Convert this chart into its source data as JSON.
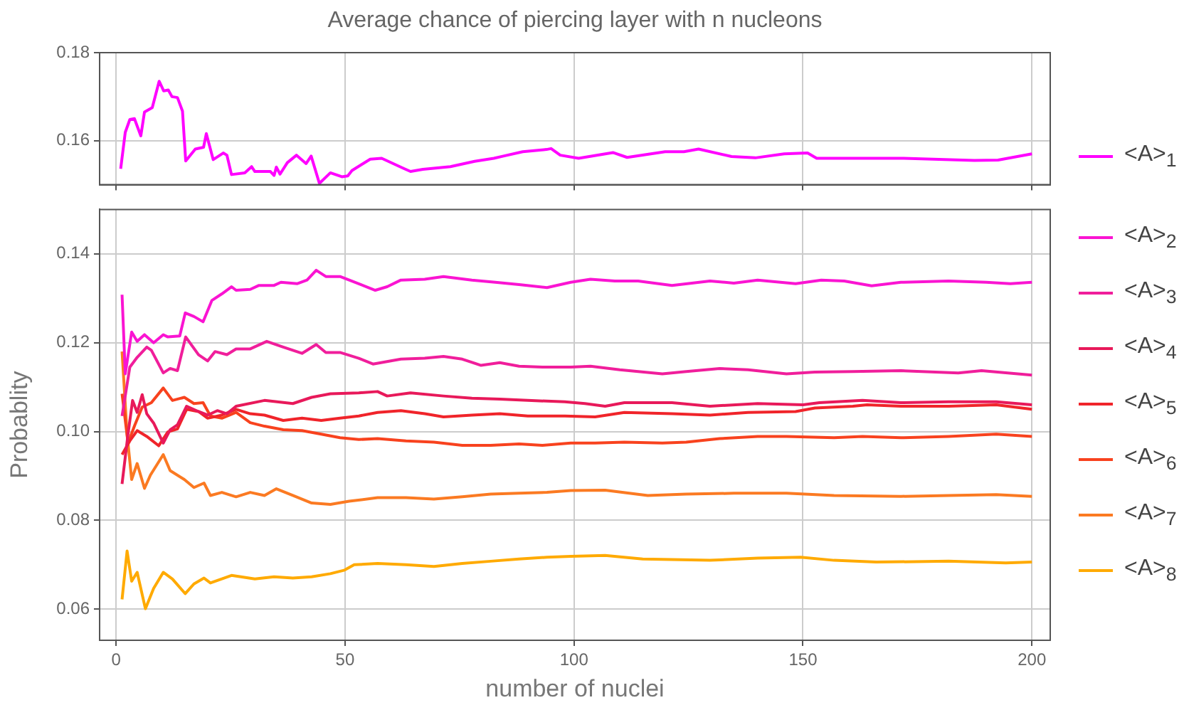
{
  "chart_data": [
    {
      "type": "line",
      "title": "Average chance of piercing layer with n nucleons",
      "xlim": [
        -3.6,
        204
      ],
      "xticks": [
        0,
        50,
        100,
        150,
        200
      ],
      "ylim": [
        0.15,
        0.18
      ],
      "yticks": [
        0.16,
        0.18
      ],
      "grid": true,
      "legend": "bottom right",
      "tick_labels": "y",
      "series": [
        {
          "name": "<A>$_{1}$",
          "color": "#ff00ff",
          "x": [
            1,
            2,
            3,
            4,
            5.4,
            6.2,
            7.9,
            9.4,
            10.4,
            11.4,
            12.2,
            13.4,
            14.5,
            15.2,
            17.3,
            19.1,
            19.7,
            21.2,
            23.4,
            24.2,
            25.2,
            28.1,
            29.6,
            30.3,
            33.7,
            34.5,
            35,
            35.8,
            37.4,
            39.4,
            41.5,
            42.6,
            44.4,
            46.8,
            49.3,
            50.6,
            51.5,
            55.5,
            58,
            62.8,
            64.3,
            67,
            73,
            78.3,
            82.5,
            84.6,
            88.8,
            94,
            95,
            97,
            101,
            108.5,
            111.6,
            119.9,
            124,
            127.2,
            134.4,
            139.6,
            145.9,
            151,
            153,
            171.8,
            187.4,
            192.6,
            200
          ],
          "values": [
            0.1536,
            0.1619,
            0.1648,
            0.165,
            0.1611,
            0.1665,
            0.1675,
            0.1735,
            0.1713,
            0.1715,
            0.17,
            0.1698,
            0.1667,
            0.1554,
            0.1581,
            0.1585,
            0.1616,
            0.1557,
            0.1572,
            0.1567,
            0.1523,
            0.1527,
            0.1541,
            0.153,
            0.153,
            0.1521,
            0.154,
            0.1524,
            0.155,
            0.1567,
            0.1548,
            0.1565,
            0.1503,
            0.1527,
            0.1518,
            0.152,
            0.1532,
            0.1558,
            0.156,
            0.1537,
            0.153,
            0.1535,
            0.1541,
            0.1553,
            0.156,
            0.1565,
            0.1575,
            0.158,
            0.1582,
            0.1567,
            0.156,
            0.1573,
            0.1562,
            0.1575,
            0.1575,
            0.1581,
            0.1564,
            0.1561,
            0.157,
            0.1572,
            0.156,
            0.156,
            0.1555,
            0.1556,
            0.157
          ]
        }
      ]
    },
    {
      "type": "line",
      "xlabel": "number of nuclei",
      "ylabel": "Probablity",
      "xlim": [
        -3.6,
        204
      ],
      "xticks": [
        0,
        50,
        100,
        150,
        200
      ],
      "ylim": [
        0.053,
        0.15
      ],
      "yticks": [
        0.06,
        0.08,
        {
          "value": 0.1,
          "label": "0.10"
        },
        0.12,
        0.14
      ],
      "grid": true,
      "legend": "top right",
      "series": [
        {
          "name": "<A>$_{2}$",
          "color": "#fa14d2",
          "x": [
            1.3,
            2,
            3.4,
            4.6,
            6.2,
            8.2,
            10.3,
            11.3,
            13.9,
            15.1,
            17,
            19,
            20.9,
            23.1,
            25.2,
            26.2,
            29.3,
            31.2,
            34.5,
            36,
            39.6,
            41.7,
            43.7,
            45.8,
            48.9,
            50.9,
            56.6,
            59.2,
            62.2,
            67.4,
            71.5,
            77.7,
            82.8,
            88,
            94.1,
            99.3,
            103.6,
            108.9,
            114,
            121.4,
            129.7,
            134.9,
            140.1,
            148.4,
            154,
            159,
            165,
            171.4,
            181.8,
            190,
            195.3,
            200
          ],
          "values": [
            0.1308,
            0.113,
            0.1224,
            0.1203,
            0.1218,
            0.12,
            0.1218,
            0.1213,
            0.1215,
            0.1267,
            0.1259,
            0.1247,
            0.1295,
            0.131,
            0.1326,
            0.1318,
            0.132,
            0.1329,
            0.1329,
            0.1336,
            0.1333,
            0.1341,
            0.1363,
            0.1349,
            0.1349,
            0.1341,
            0.1318,
            0.1326,
            0.1341,
            0.1343,
            0.1349,
            0.1341,
            0.1336,
            0.1331,
            0.1324,
            0.1336,
            0.1343,
            0.1339,
            0.1339,
            0.1329,
            0.1339,
            0.1334,
            0.1341,
            0.1333,
            0.1341,
            0.1339,
            0.1328,
            0.1336,
            0.1339,
            0.1336,
            0.1333,
            0.1336
          ]
        },
        {
          "name": "<A>$_{3}$",
          "color": "#f01e9b",
          "x": [
            1.3,
            3,
            4.6,
            6.7,
            7.7,
            10.3,
            11.8,
            13.4,
            15.2,
            18,
            20,
            21.6,
            24.2,
            26.2,
            29.3,
            32.9,
            36.5,
            40.6,
            43.7,
            45.8,
            48.9,
            53,
            56.1,
            62.2,
            67.4,
            71.5,
            75.6,
            79.7,
            83.8,
            88,
            93.1,
            99.3,
            103.6,
            110,
            119.3,
            124.5,
            131.8,
            138,
            146.4,
            152.6,
            160.9,
            171.4,
            183.9,
            189,
            200
          ],
          "values": [
            0.1035,
            0.1145,
            0.1167,
            0.119,
            0.1183,
            0.1132,
            0.1142,
            0.1137,
            0.1213,
            0.1173,
            0.1159,
            0.118,
            0.1173,
            0.1186,
            0.1186,
            0.1203,
            0.119,
            0.1176,
            0.1196,
            0.1178,
            0.1178,
            0.1165,
            0.1152,
            0.1163,
            0.1165,
            0.1169,
            0.1163,
            0.1149,
            0.1155,
            0.1147,
            0.1145,
            0.1145,
            0.1147,
            0.1139,
            0.113,
            0.1135,
            0.1142,
            0.1139,
            0.113,
            0.1134,
            0.1135,
            0.1137,
            0.1132,
            0.1137,
            0.1127
          ]
        },
        {
          "name": "<A>$_{4}$",
          "color": "#e8195a",
          "x": [
            1.3,
            2.6,
            3.6,
            4.6,
            5.7,
            6.7,
            8.2,
            10.3,
            11.8,
            13.4,
            15.4,
            18,
            20,
            22.1,
            24.2,
            26.2,
            32.4,
            38.6,
            42.7,
            46.8,
            53,
            57.1,
            59.2,
            64.3,
            71.5,
            77.7,
            83.8,
            89.9,
            98,
            102.4,
            106.8,
            111,
            121.4,
            129.7,
            140.1,
            150,
            153.6,
            163,
            171.4,
            181.8,
            192.2,
            200
          ],
          "values": [
            0.0882,
            0.0994,
            0.107,
            0.1043,
            0.1083,
            0.104,
            0.1019,
            0.0974,
            0.1004,
            0.1015,
            0.1057,
            0.1045,
            0.1037,
            0.1047,
            0.104,
            0.1057,
            0.107,
            0.1063,
            0.1077,
            0.1085,
            0.1087,
            0.109,
            0.108,
            0.1087,
            0.108,
            0.1075,
            0.1073,
            0.107,
            0.1067,
            0.1063,
            0.1057,
            0.1065,
            0.1065,
            0.1057,
            0.1063,
            0.106,
            0.1065,
            0.107,
            0.1065,
            0.1067,
            0.1067,
            0.106
          ]
        },
        {
          "name": "<A>$_{5}$",
          "color": "#f0242a",
          "x": [
            1.3,
            3,
            4.6,
            6.7,
            9.3,
            11.3,
            13.4,
            15.4,
            18,
            20,
            23.1,
            26.2,
            29.3,
            32.4,
            36.5,
            40.6,
            44.8,
            48.9,
            53,
            57.1,
            62.2,
            67.4,
            71.5,
            77.7,
            83.8,
            89.9,
            98,
            104.6,
            111,
            121.4,
            129.7,
            138,
            148.4,
            152.6,
            160.9,
            164,
            171.4,
            181.8,
            192.2,
            200
          ],
          "values": [
            0.0948,
            0.0979,
            0.1002,
            0.0989,
            0.0968,
            0.0999,
            0.1006,
            0.105,
            0.1045,
            0.103,
            0.1037,
            0.105,
            0.104,
            0.1037,
            0.1025,
            0.103,
            0.1025,
            0.103,
            0.1035,
            0.1043,
            0.1047,
            0.104,
            0.1033,
            0.1037,
            0.104,
            0.1035,
            0.1035,
            0.1033,
            0.1043,
            0.104,
            0.1037,
            0.1043,
            0.1045,
            0.1053,
            0.1057,
            0.106,
            0.1057,
            0.1057,
            0.106,
            0.105
          ]
        },
        {
          "name": "<A>$_{6}$",
          "color": "#f8421e",
          "x": [
            1.3,
            2.6,
            4.1,
            5.7,
            7.7,
            10.3,
            12.3,
            14.9,
            17,
            19,
            20.6,
            23.1,
            26.2,
            29.3,
            32.4,
            36.5,
            40.6,
            44.8,
            48.9,
            53,
            57.1,
            63.3,
            69.4,
            75.6,
            81.8,
            88,
            93.1,
            99.3,
            104.6,
            111,
            119.3,
            124.5,
            131.8,
            140.1,
            146.4,
            156.8,
            163,
            171.4,
            181.8,
            192.2,
            200
          ],
          "values": [
            0.1085,
            0.0974,
            0.1015,
            0.1055,
            0.1065,
            0.1098,
            0.107,
            0.1077,
            0.1063,
            0.1065,
            0.1035,
            0.103,
            0.1043,
            0.102,
            0.1012,
            0.1004,
            0.1002,
            0.0994,
            0.0986,
            0.0982,
            0.0984,
            0.0979,
            0.0976,
            0.0969,
            0.0969,
            0.0972,
            0.0969,
            0.0974,
            0.0974,
            0.0976,
            0.0974,
            0.0976,
            0.0984,
            0.0989,
            0.0989,
            0.0986,
            0.0989,
            0.0986,
            0.0989,
            0.0994,
            0.0989
          ]
        },
        {
          "name": "<A>$_{7}$",
          "color": "#fb7a22",
          "x": [
            1.3,
            2.4,
            3.4,
            4.6,
            6.2,
            7.5,
            10.3,
            11.8,
            14.9,
            17,
            19.2,
            20.6,
            23.1,
            26.2,
            29.3,
            32.4,
            35,
            38.6,
            42.7,
            46.8,
            50.9,
            57.1,
            63.3,
            69.4,
            75.6,
            81.8,
            88,
            94.1,
            99.3,
            106.8,
            116.1,
            124.5,
            134.9,
            146.4,
            156.8,
            171.4,
            181.8,
            192.2,
            200
          ],
          "values": [
            0.118,
            0.0994,
            0.0892,
            0.0928,
            0.0872,
            0.0902,
            0.0948,
            0.0912,
            0.0892,
            0.0874,
            0.0884,
            0.0856,
            0.0863,
            0.0853,
            0.0863,
            0.0856,
            0.0871,
            0.0856,
            0.0839,
            0.0836,
            0.0843,
            0.0851,
            0.0851,
            0.0848,
            0.0853,
            0.0859,
            0.0861,
            0.0863,
            0.0867,
            0.0868,
            0.0856,
            0.0859,
            0.0861,
            0.0861,
            0.0856,
            0.0854,
            0.0856,
            0.0858,
            0.0854
          ]
        },
        {
          "name": "<A>$_{8}$",
          "color": "#ffaa00",
          "x": [
            1.3,
            2.4,
            3.4,
            4.6,
            6.4,
            8.2,
            10.3,
            12.3,
            15.1,
            17,
            19.2,
            20.6,
            25.2,
            30.3,
            34.5,
            38.6,
            42.7,
            46.8,
            49.9,
            52,
            57.1,
            63.3,
            69.4,
            75.6,
            81.8,
            88,
            94.1,
            99.3,
            106.8,
            115,
            129.7,
            140.1,
            149.5,
            156.8,
            166,
            181.8,
            194.3,
            200
          ],
          "values": [
            0.0622,
            0.0731,
            0.0663,
            0.0683,
            0.0601,
            0.0647,
            0.0683,
            0.0668,
            0.0635,
            0.0657,
            0.067,
            0.0659,
            0.0676,
            0.0668,
            0.0673,
            0.067,
            0.0673,
            0.068,
            0.0688,
            0.07,
            0.0703,
            0.07,
            0.0696,
            0.0703,
            0.0708,
            0.0713,
            0.0717,
            0.0719,
            0.0721,
            0.0713,
            0.071,
            0.0715,
            0.0717,
            0.071,
            0.0706,
            0.0708,
            0.0704,
            0.0706
          ]
        }
      ]
    }
  ]
}
